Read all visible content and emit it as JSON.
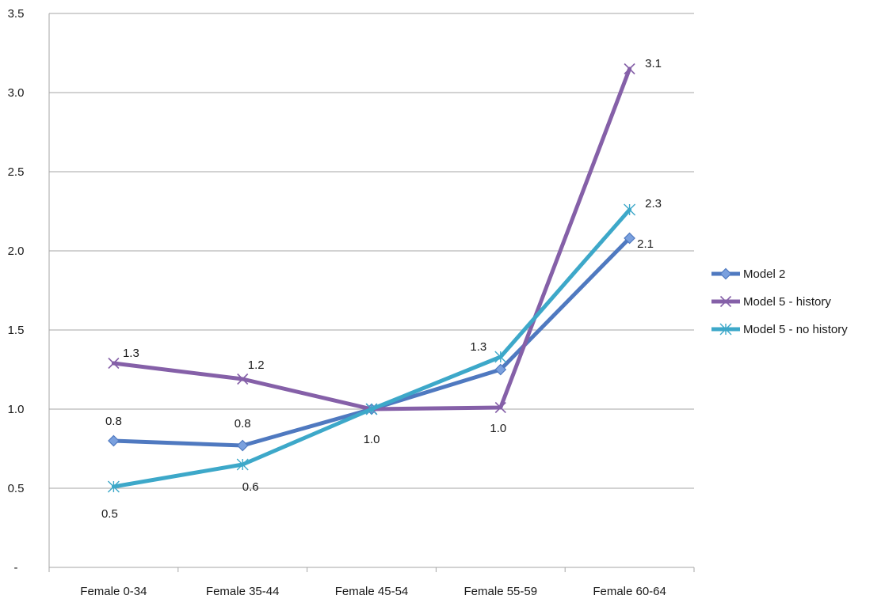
{
  "chart_data": {
    "type": "line",
    "title": "",
    "xlabel": "",
    "ylabel": "",
    "categories": [
      "Female 0-34",
      "Female 35-44",
      "Female 45-54",
      "Female 55-59",
      "Female 60-64"
    ],
    "ylim": [
      0,
      3.5
    ],
    "yticks": [
      0,
      0.5,
      1.0,
      1.5,
      2.0,
      2.5,
      3.0,
      3.5
    ],
    "ytick_labels": [
      "-",
      "0.5",
      "1.0",
      "1.5",
      "2.0",
      "2.5",
      "3.0",
      "3.5"
    ],
    "grid": true,
    "legend_position": "right",
    "series": [
      {
        "name": "Model 2",
        "values": [
          0.8,
          0.77,
          1.0,
          1.25,
          2.08
        ],
        "labels": [
          "0.8",
          "0.8",
          "",
          "",
          "2.1"
        ],
        "color": "#4F79C0",
        "marker": "diamond"
      },
      {
        "name": "Model 5 - history",
        "values": [
          1.29,
          1.19,
          1.0,
          1.01,
          3.15
        ],
        "labels": [
          "1.3",
          "1.2",
          "1.0",
          "1.0",
          "3.1"
        ],
        "color": "#8560A8",
        "marker": "x"
      },
      {
        "name": "Model 5 - no history",
        "values": [
          0.51,
          0.65,
          1.0,
          1.33,
          2.26
        ],
        "labels": [
          "0.5",
          "0.6",
          "",
          "1.3",
          "2.3"
        ],
        "color": "#3DA8C9",
        "marker": "star"
      }
    ]
  }
}
